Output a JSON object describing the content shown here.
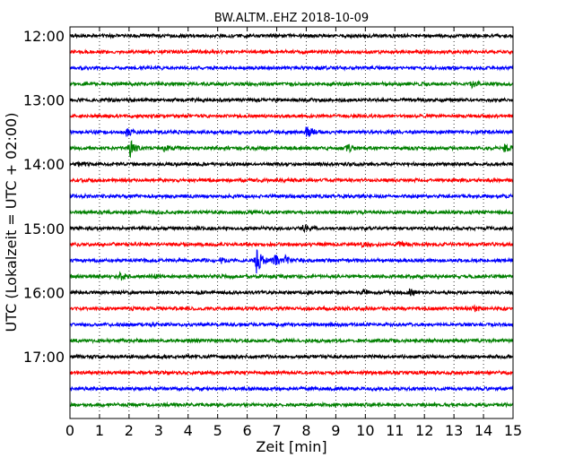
{
  "chart_data": {
    "type": "line",
    "title": "BW.ALTM..EHZ 2018-10-09",
    "xlabel": "Zeit  [min]",
    "ylabel": "UTC (Lokalzeit = UTC + 02:00)",
    "xlim": [
      0,
      15
    ],
    "x_ticks": [
      "0",
      "1",
      "2",
      "3",
      "4",
      "5",
      "6",
      "7",
      "8",
      "9",
      "10",
      "11",
      "12",
      "13",
      "14",
      "15"
    ],
    "y_tick_labels": [
      "12:00",
      "13:00",
      "14:00",
      "15:00",
      "16:00",
      "17:00"
    ],
    "grid": "vertical dotted",
    "trace_interval_min": 15,
    "colors": [
      "#000000",
      "#ff0000",
      "#0000ff",
      "#008000"
    ],
    "traces": [
      {
        "start": "12:00",
        "color": "#000000",
        "events": []
      },
      {
        "start": "12:15",
        "color": "#ff0000",
        "events": []
      },
      {
        "start": "12:30",
        "color": "#0000ff",
        "events": []
      },
      {
        "start": "12:45",
        "color": "#008000",
        "events": [
          {
            "t": 13.6,
            "amp": 0.3
          }
        ]
      },
      {
        "start": "13:00",
        "color": "#000000",
        "events": []
      },
      {
        "start": "13:15",
        "color": "#ff0000",
        "events": []
      },
      {
        "start": "13:30",
        "color": "#0000ff",
        "events": [
          {
            "t": 1.9,
            "amp": 0.45
          },
          {
            "t": 8.0,
            "amp": 0.9
          }
        ]
      },
      {
        "start": "13:45",
        "color": "#008000",
        "events": [
          {
            "t": 2.0,
            "amp": 1.0
          },
          {
            "t": 3.2,
            "amp": 0.45
          },
          {
            "t": 9.4,
            "amp": 0.55
          },
          {
            "t": 14.7,
            "amp": 0.45
          }
        ]
      },
      {
        "start": "14:00",
        "color": "#000000",
        "events": [
          {
            "t": 0.3,
            "amp": 0.3
          }
        ]
      },
      {
        "start": "14:15",
        "color": "#ff0000",
        "events": []
      },
      {
        "start": "14:30",
        "color": "#0000ff",
        "events": []
      },
      {
        "start": "14:45",
        "color": "#008000",
        "events": []
      },
      {
        "start": "15:00",
        "color": "#000000",
        "events": [
          {
            "t": 7.9,
            "amp": 0.4
          }
        ]
      },
      {
        "start": "15:15",
        "color": "#ff0000",
        "events": [
          {
            "t": 9.9,
            "amp": 0.25
          },
          {
            "t": 11.1,
            "amp": 0.25
          }
        ]
      },
      {
        "start": "15:30",
        "color": "#0000ff",
        "events": [
          {
            "t": 5.1,
            "amp": 0.3
          },
          {
            "t": 6.3,
            "amp": 1.7
          },
          {
            "t": 6.9,
            "amp": 0.8
          },
          {
            "t": 7.3,
            "amp": 0.35
          }
        ]
      },
      {
        "start": "15:45",
        "color": "#008000",
        "events": [
          {
            "t": 1.7,
            "amp": 0.35
          },
          {
            "t": 2.8,
            "amp": 0.25
          }
        ]
      },
      {
        "start": "16:00",
        "color": "#000000",
        "events": [
          {
            "t": 9.9,
            "amp": 0.35
          },
          {
            "t": 11.5,
            "amp": 0.35
          }
        ]
      },
      {
        "start": "16:15",
        "color": "#ff0000",
        "events": [
          {
            "t": 13.7,
            "amp": 0.3
          }
        ]
      },
      {
        "start": "16:30",
        "color": "#0000ff",
        "events": []
      },
      {
        "start": "16:45",
        "color": "#008000",
        "events": []
      },
      {
        "start": "17:00",
        "color": "#000000",
        "events": []
      },
      {
        "start": "17:15",
        "color": "#ff0000",
        "events": []
      },
      {
        "start": "17:30",
        "color": "#0000ff",
        "events": []
      },
      {
        "start": "17:45",
        "color": "#008000",
        "events": []
      }
    ]
  }
}
